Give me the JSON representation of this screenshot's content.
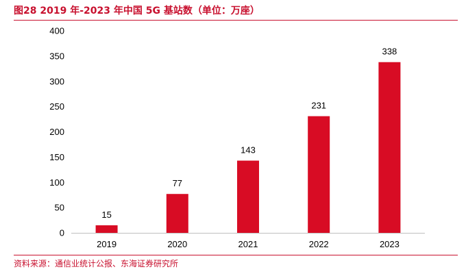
{
  "figure": {
    "title": "图28  2019 年-2023 年中国 5G 基站数（单位：万座）",
    "source": "资料来源：通信业统计公报、东海证券研究所"
  },
  "colors": {
    "accent": "#c8102e",
    "bar": "#d80c24",
    "axis": "#bfbfbf"
  },
  "chart_data": {
    "type": "bar",
    "title": "",
    "xlabel": "",
    "ylabel": "",
    "categories": [
      "2019",
      "2020",
      "2021",
      "2022",
      "2023"
    ],
    "series": [
      {
        "values": [
          15,
          77,
          143,
          231,
          338
        ]
      }
    ],
    "data_labels": [
      "15",
      "77",
      "143",
      "231",
      "338"
    ],
    "ylim": [
      0,
      400
    ],
    "yticks": [
      0,
      50,
      100,
      150,
      200,
      250,
      300,
      350,
      400
    ],
    "grid": false,
    "legend": "none"
  }
}
